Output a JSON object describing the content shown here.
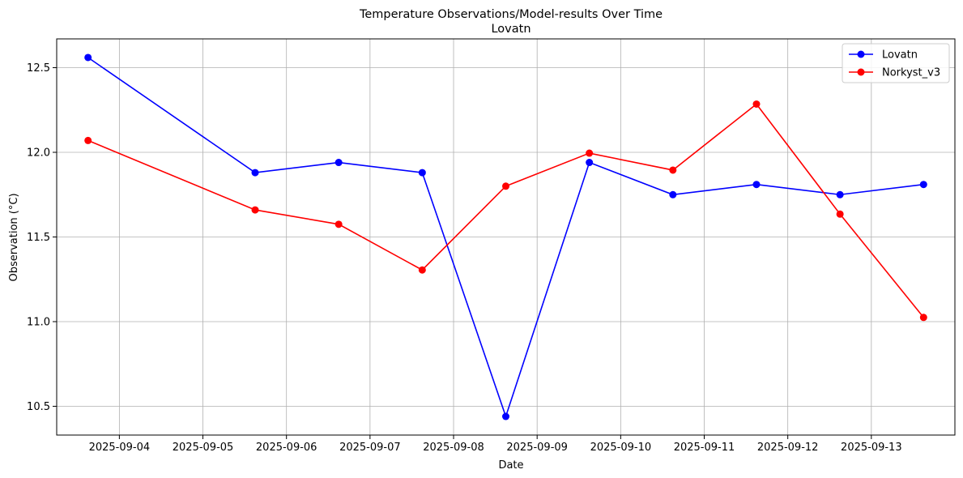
{
  "chart_data": {
    "type": "line",
    "title": "Temperature Observations/Model-results Over Time",
    "subtitle": "Lovatn",
    "xlabel": "Date",
    "ylabel": "Observation (°C)",
    "x_ticks": [
      "2025-09-04",
      "2025-09-05",
      "2025-09-06",
      "2025-09-07",
      "2025-09-08",
      "2025-09-09",
      "2025-09-10",
      "2025-09-11",
      "2025-09-12",
      "2025-09-13"
    ],
    "y_ticks": [
      "10.5",
      "11.0",
      "11.5",
      "12.0",
      "12.5"
    ],
    "xlim": [
      "2025-09-03 06:00",
      "2025-09-14 00:00"
    ],
    "ylim": [
      10.33,
      12.67
    ],
    "grid": true,
    "legend_position": "top-right",
    "x": [
      "2025-09-03 15:00",
      "2025-09-05 15:00",
      "2025-09-06 15:00",
      "2025-09-07 15:00",
      "2025-09-08 15:00",
      "2025-09-09 15:00",
      "2025-09-10 15:00",
      "2025-09-11 15:00",
      "2025-09-12 15:00",
      "2025-09-13 15:00"
    ],
    "series": [
      {
        "name": "Lovatn",
        "color": "#0000ff",
        "values": [
          12.56,
          11.88,
          11.94,
          11.88,
          10.44,
          11.94,
          11.75,
          11.81,
          11.75,
          11.81
        ]
      },
      {
        "name": "Norkyst_v3",
        "color": "#ff0000",
        "values": [
          12.07,
          11.66,
          11.575,
          11.305,
          11.8,
          11.995,
          11.895,
          12.285,
          11.635,
          11.025
        ]
      }
    ]
  }
}
